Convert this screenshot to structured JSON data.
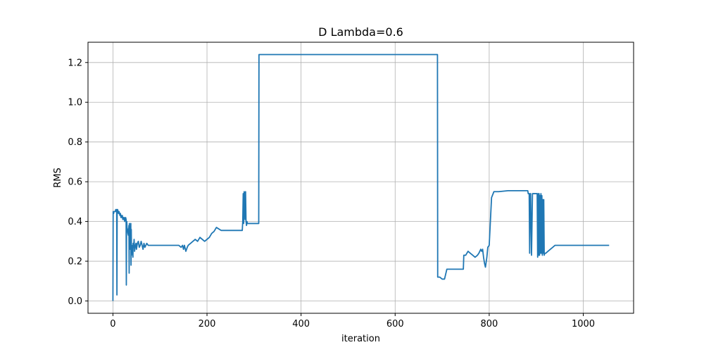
{
  "chart_data": {
    "type": "line",
    "title": "D Lambda=0.6",
    "xlabel": "iteration",
    "ylabel": "RMS",
    "xlim": [
      -53,
      1107
    ],
    "ylim": [
      -0.062,
      1.302
    ],
    "xticks": [
      0,
      200,
      400,
      600,
      800,
      1000
    ],
    "yticks": [
      0.0,
      0.2,
      0.4,
      0.6,
      0.8,
      1.0,
      1.2
    ],
    "xtick_labels": [
      "0",
      "200",
      "400",
      "600",
      "800",
      "1000"
    ],
    "ytick_labels": [
      "0.0",
      "0.2",
      "0.4",
      "0.6",
      "0.8",
      "1.0",
      "1.2"
    ],
    "grid": true,
    "color": "#1f77b4",
    "series": [
      {
        "x": [
          0,
          0.5,
          1,
          1.5,
          2,
          3,
          4,
          5,
          6,
          7,
          8,
          8.5,
          9,
          9.5,
          10,
          11,
          12,
          13,
          14,
          15,
          16,
          17,
          18,
          19,
          20,
          21,
          22,
          23,
          24,
          25,
          26,
          27,
          28,
          28.5,
          29,
          29.5,
          30,
          31,
          32,
          33,
          34,
          34.5,
          35,
          35.5,
          36,
          37,
          38,
          38.5,
          39,
          39.5,
          40,
          41,
          42,
          42.5,
          43,
          44,
          45,
          46,
          47,
          48,
          49,
          50,
          52,
          54,
          56,
          58,
          60,
          62,
          64,
          66,
          68,
          70,
          72,
          75,
          80,
          100,
          120,
          140,
          145,
          148,
          150,
          152,
          155,
          158,
          160,
          165,
          170,
          175,
          180,
          185,
          190,
          195,
          200,
          205,
          210,
          215,
          220,
          230,
          250,
          260,
          275,
          276,
          277,
          278,
          279,
          280,
          281,
          282,
          283,
          284,
          285,
          286,
          287,
          288,
          290,
          300,
          310,
          310.5,
          400,
          500,
          600,
          690,
          690.5,
          695,
          700,
          705,
          710,
          720,
          730,
          740,
          745,
          746,
          750,
          755,
          760,
          765,
          770,
          775,
          778,
          780,
          782,
          784,
          786,
          788,
          790,
          792,
          795,
          797,
          800,
          805,
          810,
          820,
          840,
          860,
          875,
          880,
          882,
          883,
          885,
          886,
          887,
          888,
          890,
          892,
          900,
          901,
          902,
          903,
          904,
          905,
          906,
          907,
          908,
          909,
          910,
          911,
          912,
          913,
          914,
          915,
          916,
          917,
          918,
          920,
          925,
          930,
          935,
          940,
          945,
          950,
          960,
          980,
          1000,
          1020,
          1040,
          1055
        ],
        "y": [
          0.0,
          0.45,
          0.45,
          0.44,
          0.45,
          0.45,
          0.45,
          0.45,
          0.46,
          0.45,
          0.46,
          0.03,
          0.46,
          0.45,
          0.46,
          0.45,
          0.44,
          0.45,
          0.44,
          0.43,
          0.44,
          0.42,
          0.43,
          0.42,
          0.43,
          0.41,
          0.42,
          0.41,
          0.42,
          0.4,
          0.41,
          0.42,
          0.41,
          0.08,
          0.39,
          0.4,
          0.37,
          0.36,
          0.34,
          0.33,
          0.38,
          0.14,
          0.39,
          0.33,
          0.26,
          0.3,
          0.39,
          0.18,
          0.36,
          0.23,
          0.28,
          0.26,
          0.28,
          0.22,
          0.29,
          0.27,
          0.31,
          0.25,
          0.27,
          0.28,
          0.29,
          0.26,
          0.29,
          0.3,
          0.27,
          0.28,
          0.3,
          0.28,
          0.26,
          0.29,
          0.27,
          0.28,
          0.29,
          0.28,
          0.28,
          0.28,
          0.28,
          0.28,
          0.27,
          0.28,
          0.26,
          0.28,
          0.25,
          0.27,
          0.28,
          0.29,
          0.3,
          0.31,
          0.3,
          0.32,
          0.31,
          0.3,
          0.31,
          0.32,
          0.34,
          0.35,
          0.37,
          0.355,
          0.355,
          0.355,
          0.355,
          0.4,
          0.54,
          0.39,
          0.55,
          0.54,
          0.41,
          0.55,
          0.4,
          0.38,
          0.4,
          0.39,
          0.39,
          0.39,
          0.39,
          0.39,
          0.39,
          1.24,
          1.24,
          1.24,
          1.24,
          1.24,
          0.12,
          0.12,
          0.11,
          0.11,
          0.16,
          0.16,
          0.16,
          0.16,
          0.16,
          0.23,
          0.23,
          0.25,
          0.24,
          0.23,
          0.22,
          0.23,
          0.24,
          0.25,
          0.26,
          0.25,
          0.26,
          0.22,
          0.19,
          0.17,
          0.22,
          0.27,
          0.28,
          0.52,
          0.55,
          0.55,
          0.555,
          0.555,
          0.555,
          0.555,
          0.555,
          0.54,
          0.54,
          0.24,
          0.54,
          0.54,
          0.23,
          0.54,
          0.54,
          0.54,
          0.54,
          0.22,
          0.54,
          0.23,
          0.54,
          0.23,
          0.53,
          0.24,
          0.54,
          0.24,
          0.53,
          0.23,
          0.51,
          0.24,
          0.51,
          0.23,
          0.24,
          0.24,
          0.25,
          0.26,
          0.27,
          0.28,
          0.28,
          0.28,
          0.28,
          0.28,
          0.28,
          0.28,
          0.28,
          0.28
        ]
      }
    ]
  }
}
